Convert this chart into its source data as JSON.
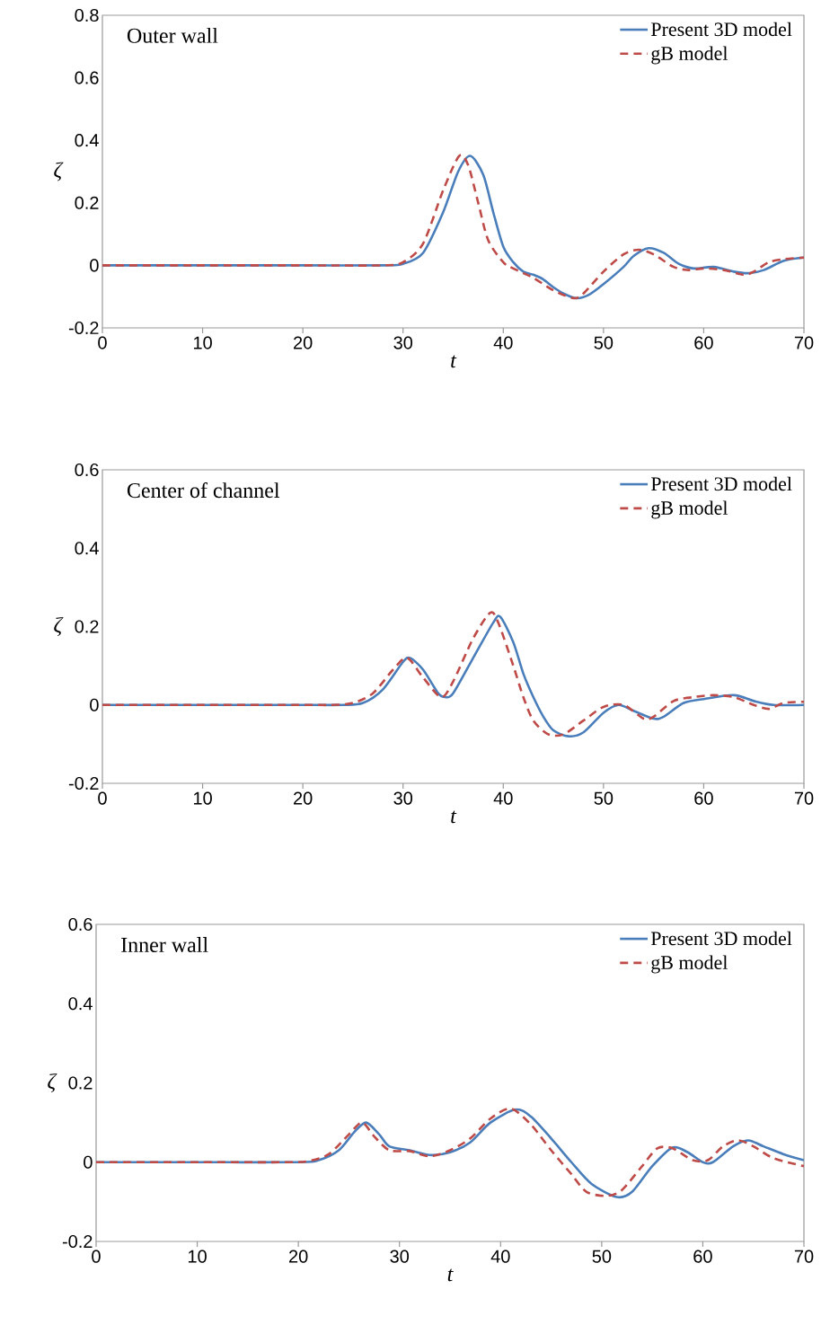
{
  "chart_data": [
    {
      "type": "line",
      "annotations": [
        "Outer wall"
      ],
      "xlabel": "t",
      "ylabel": "ζ",
      "xlim": [
        0,
        70
      ],
      "xticks": [
        0,
        10,
        20,
        30,
        40,
        50,
        60,
        70
      ],
      "ylim": [
        -0.2,
        0.8
      ],
      "yticks": [
        -0.2,
        0,
        0.2,
        0.4,
        0.6,
        0.8
      ],
      "grid": false,
      "legend": "top right",
      "marker": "none",
      "series": [
        {
          "name": "Present 3D model",
          "color": "#4a7ebb",
          "line_style": "solid",
          "x": [
            0,
            10,
            20,
            28,
            30,
            32,
            34,
            35.5,
            36.7,
            38,
            39,
            40,
            41,
            42,
            43,
            44,
            45,
            46,
            47.3,
            48.5,
            50,
            52,
            53,
            54.5,
            56,
            57.5,
            59,
            61,
            63,
            64.5,
            66,
            68,
            70
          ],
          "values": [
            0,
            0,
            0,
            0,
            0.005,
            0.04,
            0.17,
            0.3,
            0.35,
            0.29,
            0.17,
            0.06,
            0.01,
            -0.02,
            -0.03,
            -0.045,
            -0.07,
            -0.09,
            -0.105,
            -0.095,
            -0.06,
            -0.005,
            0.03,
            0.055,
            0.04,
            0.005,
            -0.01,
            -0.005,
            -0.02,
            -0.025,
            -0.015,
            0.015,
            0.025
          ]
        },
        {
          "name": "gB model",
          "color": "#be4b48",
          "line_style": "dashed",
          "x": [
            0,
            10,
            20,
            28,
            30,
            32,
            34,
            35.6,
            36.5,
            37.5,
            38.5,
            40,
            41,
            43,
            45,
            47,
            48,
            50,
            52,
            53.5,
            55,
            57,
            58.5,
            60,
            62,
            64,
            65,
            66.5,
            68,
            70
          ],
          "values": [
            0,
            0,
            0,
            0,
            0.01,
            0.07,
            0.24,
            0.35,
            0.32,
            0.2,
            0.08,
            0.01,
            -0.01,
            -0.04,
            -0.08,
            -0.105,
            -0.09,
            -0.02,
            0.035,
            0.05,
            0.035,
            -0.005,
            -0.015,
            -0.01,
            -0.015,
            -0.03,
            -0.02,
            0.01,
            0.02,
            0.025
          ]
        }
      ]
    },
    {
      "type": "line",
      "annotations": [
        "Center of channel"
      ],
      "xlabel": "t",
      "ylabel": "ζ",
      "xlim": [
        0,
        70
      ],
      "xticks": [
        0,
        10,
        20,
        30,
        40,
        50,
        60,
        70
      ],
      "ylim": [
        -0.2,
        0.6
      ],
      "yticks": [
        -0.2,
        0,
        0.2,
        0.4,
        0.6
      ],
      "grid": false,
      "legend": "top right",
      "marker": "none",
      "series": [
        {
          "name": "Present 3D model",
          "color": "#4a7ebb",
          "line_style": "solid",
          "x": [
            0,
            10,
            20,
            24,
            26,
            28,
            30,
            30.7,
            32,
            33.5,
            34.2,
            35,
            37,
            39,
            39.7,
            41,
            42,
            43,
            44,
            45,
            46.5,
            48,
            50,
            51.5,
            53,
            55,
            56,
            58,
            60,
            63,
            65,
            67,
            70
          ],
          "values": [
            0,
            0,
            0,
            0,
            0.005,
            0.04,
            0.11,
            0.12,
            0.09,
            0.03,
            0.02,
            0.03,
            0.12,
            0.21,
            0.225,
            0.16,
            0.08,
            0.02,
            -0.03,
            -0.065,
            -0.08,
            -0.07,
            -0.02,
            0,
            -0.015,
            -0.035,
            -0.03,
            0.005,
            0.015,
            0.025,
            0.01,
            0,
            0
          ]
        },
        {
          "name": "gB model",
          "color": "#be4b48",
          "line_style": "dashed",
          "x": [
            0,
            10,
            20,
            23,
            25,
            27,
            29,
            30.4,
            32,
            33.8,
            35,
            37,
            38.7,
            39.5,
            41,
            42,
            43,
            44.5,
            46,
            48,
            50,
            52,
            54,
            55,
            57,
            59,
            61,
            63,
            65,
            66.5,
            68,
            70
          ],
          "values": [
            0,
            0,
            0,
            0,
            0.005,
            0.03,
            0.09,
            0.12,
            0.07,
            0.02,
            0.06,
            0.17,
            0.235,
            0.21,
            0.1,
            0.02,
            -0.04,
            -0.075,
            -0.075,
            -0.04,
            -0.005,
            0,
            -0.035,
            -0.03,
            0.01,
            0.02,
            0.025,
            0.02,
            0,
            -0.01,
            0.005,
            0.008
          ]
        }
      ]
    },
    {
      "type": "line",
      "annotations": [
        "Inner wall"
      ],
      "xlabel": "t",
      "ylabel": "ζ",
      "xlim": [
        0,
        70
      ],
      "xticks": [
        0,
        10,
        20,
        30,
        40,
        50,
        60,
        70
      ],
      "ylim": [
        -0.2,
        0.6
      ],
      "yticks": [
        -0.2,
        0,
        0.2,
        0.4,
        0.6
      ],
      "grid": false,
      "legend": "top right",
      "marker": "none",
      "series": [
        {
          "name": "Present 3D model",
          "color": "#4a7ebb",
          "line_style": "solid",
          "x": [
            0,
            10,
            20,
            22,
            24,
            25.5,
            26.7,
            28,
            29,
            31,
            33,
            35,
            37,
            39,
            41.5,
            43,
            45,
            47,
            49,
            51.5,
            53,
            55,
            57,
            58.5,
            60,
            61,
            63,
            64.5,
            66,
            68,
            70
          ],
          "values": [
            0,
            0,
            0,
            0.005,
            0.03,
            0.075,
            0.1,
            0.07,
            0.04,
            0.03,
            0.018,
            0.025,
            0.05,
            0.1,
            0.133,
            0.115,
            0.06,
            0,
            -0.055,
            -0.088,
            -0.075,
            -0.01,
            0.037,
            0.025,
            0,
            0,
            0.04,
            0.055,
            0.04,
            0.02,
            0.005
          ]
        },
        {
          "name": "gB model",
          "color": "#be4b48",
          "line_style": "dashed",
          "x": [
            0,
            10,
            19,
            21,
            23,
            25,
            26.3,
            27.5,
            29,
            31,
            33,
            35,
            37,
            39,
            41,
            43,
            45,
            47,
            48.5,
            50.5,
            52,
            54,
            55.5,
            57,
            59,
            60.5,
            62,
            63.5,
            65,
            67,
            70
          ],
          "values": [
            0,
            0,
            0,
            0.003,
            0.02,
            0.07,
            0.1,
            0.065,
            0.03,
            0.028,
            0.015,
            0.03,
            0.06,
            0.11,
            0.135,
            0.095,
            0.03,
            -0.03,
            -0.075,
            -0.085,
            -0.07,
            -0.01,
            0.035,
            0.035,
            0.005,
            0.005,
            0.04,
            0.055,
            0.04,
            0.01,
            -0.01
          ]
        }
      ]
    }
  ]
}
